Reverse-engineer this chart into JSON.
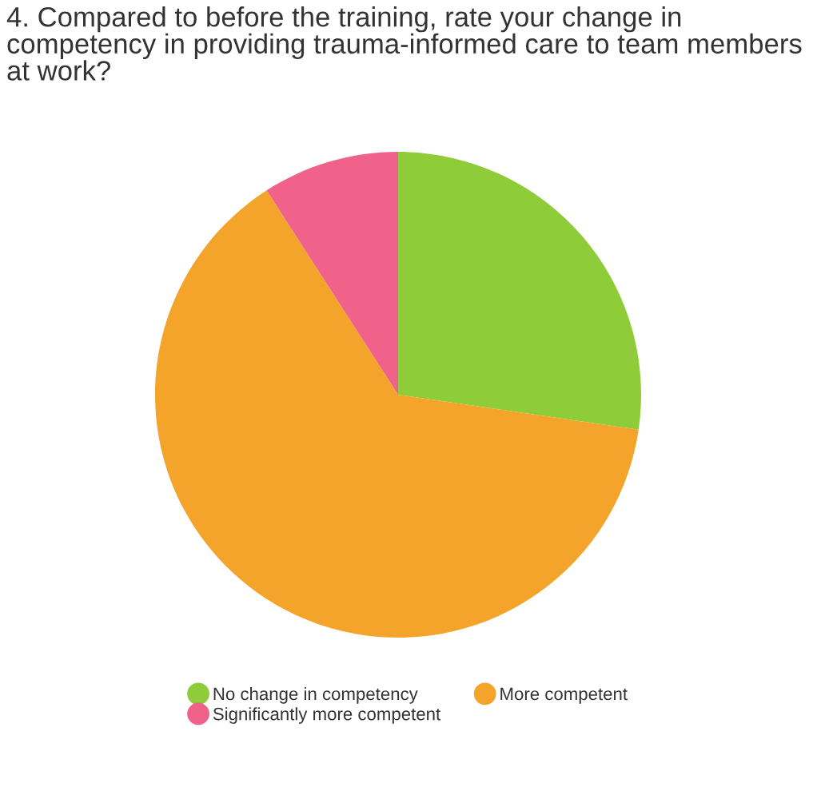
{
  "chart_data": {
    "type": "pie",
    "title": "4. Compared to before the training, rate your change in competency in providing trauma-informed care to team members at work?",
    "categories": [
      "No change in competency",
      "More competent",
      "Significantly more competent"
    ],
    "values": [
      27.3,
      63.6,
      9.1
    ],
    "colors": [
      "#8fcc3a",
      "#f4a42a",
      "#f0628a"
    ],
    "legend": "bottom"
  }
}
